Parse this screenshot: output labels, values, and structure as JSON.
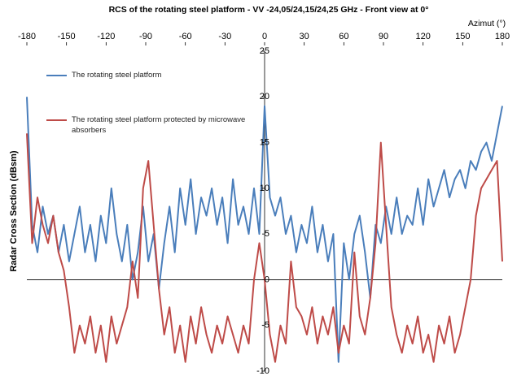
{
  "chart_data": {
    "type": "line",
    "title": "RCS of the rotating steel platform - VV -24,05/24,15/24,25 GHz - Front view at 0°",
    "x_label": "Azimut (°)",
    "y_label": "Radar Cross Section (dBsm)",
    "x": [
      -180,
      -176,
      -172,
      -168,
      -164,
      -160,
      -156,
      -152,
      -148,
      -144,
      -140,
      -136,
      -132,
      -128,
      -124,
      -120,
      -116,
      -112,
      -108,
      -104,
      -100,
      -96,
      -92,
      -88,
      -84,
      -80,
      -76,
      -72,
      -68,
      -64,
      -60,
      -56,
      -52,
      -48,
      -44,
      -40,
      -36,
      -32,
      -28,
      -24,
      -20,
      -16,
      -12,
      -8,
      -4,
      0,
      4,
      8,
      12,
      16,
      20,
      24,
      28,
      32,
      36,
      40,
      44,
      48,
      52,
      56,
      60,
      64,
      68,
      72,
      76,
      80,
      84,
      88,
      92,
      96,
      100,
      104,
      108,
      112,
      116,
      120,
      124,
      128,
      132,
      136,
      140,
      144,
      148,
      152,
      156,
      160,
      164,
      168,
      172,
      176,
      180
    ],
    "series": [
      {
        "name": "The rotating steel platform",
        "color": "#4a7ebb",
        "values": [
          20,
          6,
          3,
          8,
          5,
          7,
          3,
          6,
          2,
          5,
          8,
          3,
          6,
          2,
          7,
          4,
          10,
          5,
          2,
          6,
          0,
          3,
          8,
          2,
          5,
          -1,
          4,
          8,
          3,
          10,
          6,
          11,
          5,
          9,
          7,
          10,
          6,
          9,
          4,
          11,
          6,
          8,
          5,
          10,
          5,
          19,
          9,
          7,
          9,
          5,
          7,
          3,
          6,
          4,
          8,
          3,
          6,
          2,
          5,
          -9,
          4,
          0,
          5,
          7,
          3,
          -2,
          6,
          4,
          8,
          5,
          9,
          5,
          7,
          6,
          10,
          6,
          11,
          8,
          10,
          12,
          9,
          11,
          12,
          10,
          13,
          12,
          14,
          15,
          13,
          16,
          19
        ]
      },
      {
        "name": "The rotating steel platform protected by microwave absorbers",
        "color": "#be4b48",
        "values": [
          16,
          4,
          9,
          6,
          4,
          7,
          3,
          1,
          -3,
          -8,
          -5,
          -7,
          -4,
          -8,
          -5,
          -9,
          -4,
          -7,
          -5,
          -3,
          2,
          -2,
          10,
          13,
          6,
          -1,
          -6,
          -3,
          -8,
          -5,
          -9,
          -4,
          -7,
          -3,
          -6,
          -8,
          -5,
          -7,
          -4,
          -6,
          -8,
          -5,
          -7,
          0,
          4,
          0,
          -6,
          -9,
          -5,
          -7,
          2,
          -3,
          -4,
          -6,
          -3,
          -7,
          -4,
          -6,
          -3,
          -8,
          -5,
          -7,
          3,
          -4,
          -6,
          -2,
          4,
          15,
          6,
          -3,
          -6,
          -8,
          -5,
          -7,
          -4,
          -8,
          -6,
          -9,
          -5,
          -7,
          -4,
          -8,
          -6,
          -3,
          0,
          7,
          10,
          11,
          12,
          13,
          2
        ]
      }
    ],
    "xlim": [
      -180,
      180
    ],
    "xticks": [
      -180,
      -150,
      -120,
      -90,
      -60,
      -30,
      0,
      30,
      60,
      90,
      120,
      150,
      180
    ],
    "ylim": [
      -10,
      25
    ],
    "yticks": [
      -10,
      -5,
      0,
      5,
      10,
      15,
      20,
      25
    ]
  }
}
